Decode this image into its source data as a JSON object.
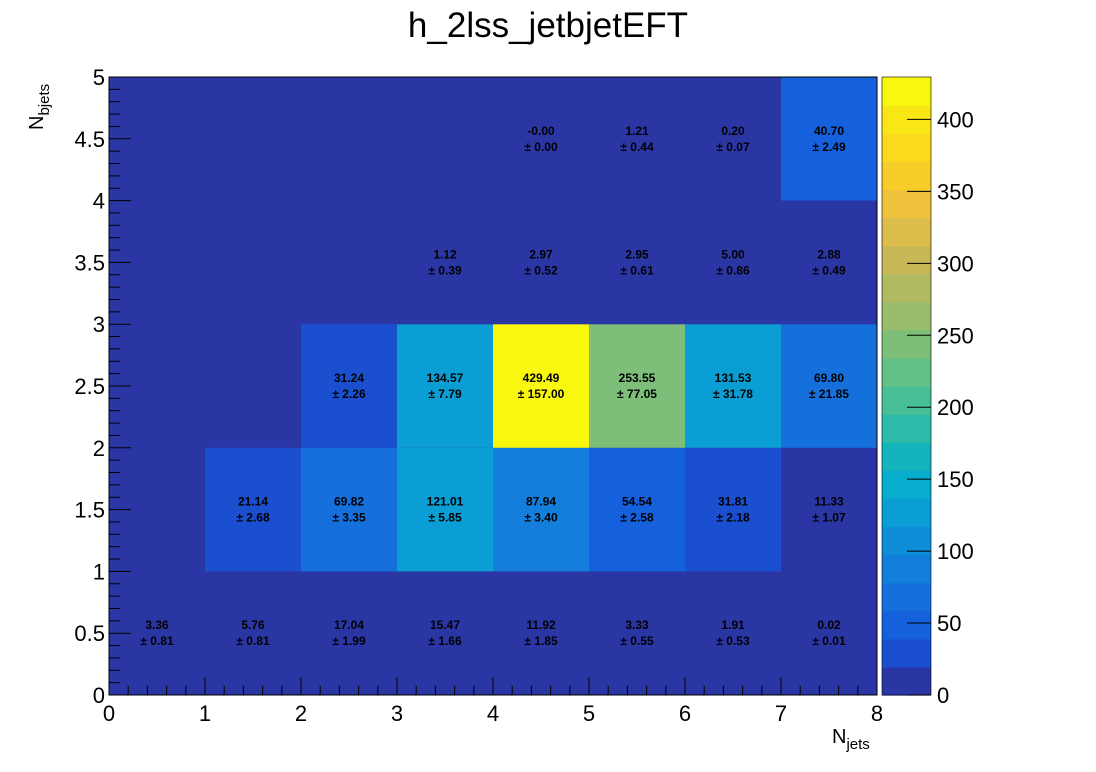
{
  "chart_data": {
    "type": "heatmap",
    "title": "h_2lss_jetbjetEFT",
    "xlabel": {
      "main": "N",
      "sub": "jets"
    },
    "ylabel": {
      "main": "N",
      "sub": "bjets"
    },
    "xlim": [
      0,
      8
    ],
    "ylim": [
      0,
      5
    ],
    "x_bin_edges": [
      0,
      1,
      2,
      3,
      4,
      5,
      6,
      7,
      8
    ],
    "y_bin_edges": [
      0,
      1,
      2,
      3,
      4,
      5
    ],
    "x_ticks": [
      "0",
      "1",
      "2",
      "3",
      "4",
      "5",
      "6",
      "7",
      "8"
    ],
    "y_ticks": [
      "0",
      "0.5",
      "1",
      "1.5",
      "2",
      "2.5",
      "3",
      "3.5",
      "4",
      "4.5",
      "5"
    ],
    "z_range": [
      0,
      429.49
    ],
    "z_ticks": [
      "0",
      "50",
      "100",
      "150",
      "200",
      "250",
      "300",
      "350",
      "400"
    ],
    "palette": [
      "#2b36a5",
      "#1a4fd0",
      "#1560dc",
      "#1570dc",
      "#137edb",
      "#0f8ed8",
      "#0a9ed4",
      "#08accc",
      "#14b4bc",
      "#2cbba8",
      "#49bf96",
      "#63c187",
      "#7dbf79",
      "#98bd6c",
      "#b0ba60",
      "#c8b855",
      "#dcbd4b",
      "#efc23e",
      "#f7cd2a",
      "#f9da1c",
      "#f8e714",
      "#f9f70f"
    ],
    "cells": [
      {
        "ix": 0,
        "iy": 0,
        "value": 3.36,
        "value_label": "3.36",
        "error_label": "± 0.81"
      },
      {
        "ix": 1,
        "iy": 0,
        "value": 5.76,
        "value_label": "5.76",
        "error_label": "± 0.81"
      },
      {
        "ix": 2,
        "iy": 0,
        "value": 17.04,
        "value_label": "17.04",
        "error_label": "± 1.99"
      },
      {
        "ix": 3,
        "iy": 0,
        "value": 15.47,
        "value_label": "15.47",
        "error_label": "± 1.66"
      },
      {
        "ix": 4,
        "iy": 0,
        "value": 11.92,
        "value_label": "11.92",
        "error_label": "± 1.85"
      },
      {
        "ix": 5,
        "iy": 0,
        "value": 3.33,
        "value_label": "3.33",
        "error_label": "± 0.55"
      },
      {
        "ix": 6,
        "iy": 0,
        "value": 1.91,
        "value_label": "1.91",
        "error_label": "± 0.53"
      },
      {
        "ix": 7,
        "iy": 0,
        "value": 0.02,
        "value_label": "0.02",
        "error_label": "± 0.01"
      },
      {
        "ix": 1,
        "iy": 1,
        "value": 21.14,
        "value_label": "21.14",
        "error_label": "± 2.68"
      },
      {
        "ix": 2,
        "iy": 1,
        "value": 69.82,
        "value_label": "69.82",
        "error_label": "± 3.35"
      },
      {
        "ix": 3,
        "iy": 1,
        "value": 121.01,
        "value_label": "121.01",
        "error_label": "± 5.85"
      },
      {
        "ix": 4,
        "iy": 1,
        "value": 87.94,
        "value_label": "87.94",
        "error_label": "± 3.40"
      },
      {
        "ix": 5,
        "iy": 1,
        "value": 54.54,
        "value_label": "54.54",
        "error_label": "± 2.58"
      },
      {
        "ix": 6,
        "iy": 1,
        "value": 31.81,
        "value_label": "31.81",
        "error_label": "± 2.18"
      },
      {
        "ix": 7,
        "iy": 1,
        "value": 11.33,
        "value_label": "11.33",
        "error_label": "± 1.07"
      },
      {
        "ix": 2,
        "iy": 2,
        "value": 31.24,
        "value_label": "31.24",
        "error_label": "± 2.26"
      },
      {
        "ix": 3,
        "iy": 2,
        "value": 134.57,
        "value_label": "134.57",
        "error_label": "± 7.79"
      },
      {
        "ix": 4,
        "iy": 2,
        "value": 429.49,
        "value_label": "429.49",
        "error_label": "± 157.00"
      },
      {
        "ix": 5,
        "iy": 2,
        "value": 253.55,
        "value_label": "253.55",
        "error_label": "± 77.05"
      },
      {
        "ix": 6,
        "iy": 2,
        "value": 131.53,
        "value_label": "131.53",
        "error_label": "± 31.78"
      },
      {
        "ix": 7,
        "iy": 2,
        "value": 69.8,
        "value_label": "69.80",
        "error_label": "± 21.85"
      },
      {
        "ix": 3,
        "iy": 3,
        "value": 1.12,
        "value_label": "1.12",
        "error_label": "± 0.39"
      },
      {
        "ix": 4,
        "iy": 3,
        "value": 2.97,
        "value_label": "2.97",
        "error_label": "± 0.52"
      },
      {
        "ix": 5,
        "iy": 3,
        "value": 2.95,
        "value_label": "2.95",
        "error_label": "± 0.61"
      },
      {
        "ix": 6,
        "iy": 3,
        "value": 5.0,
        "value_label": "5.00",
        "error_label": "± 0.86"
      },
      {
        "ix": 7,
        "iy": 3,
        "value": 2.88,
        "value_label": "2.88",
        "error_label": "± 0.49"
      },
      {
        "ix": 4,
        "iy": 4,
        "value": -0.0,
        "value_label": "-0.00",
        "error_label": "± 0.00"
      },
      {
        "ix": 5,
        "iy": 4,
        "value": 1.21,
        "value_label": "1.21",
        "error_label": "± 0.44"
      },
      {
        "ix": 6,
        "iy": 4,
        "value": 0.2,
        "value_label": "0.20",
        "error_label": "± 0.07"
      },
      {
        "ix": 7,
        "iy": 4,
        "value": 40.7,
        "value_label": "40.70",
        "error_label": "± 2.49"
      }
    ]
  }
}
